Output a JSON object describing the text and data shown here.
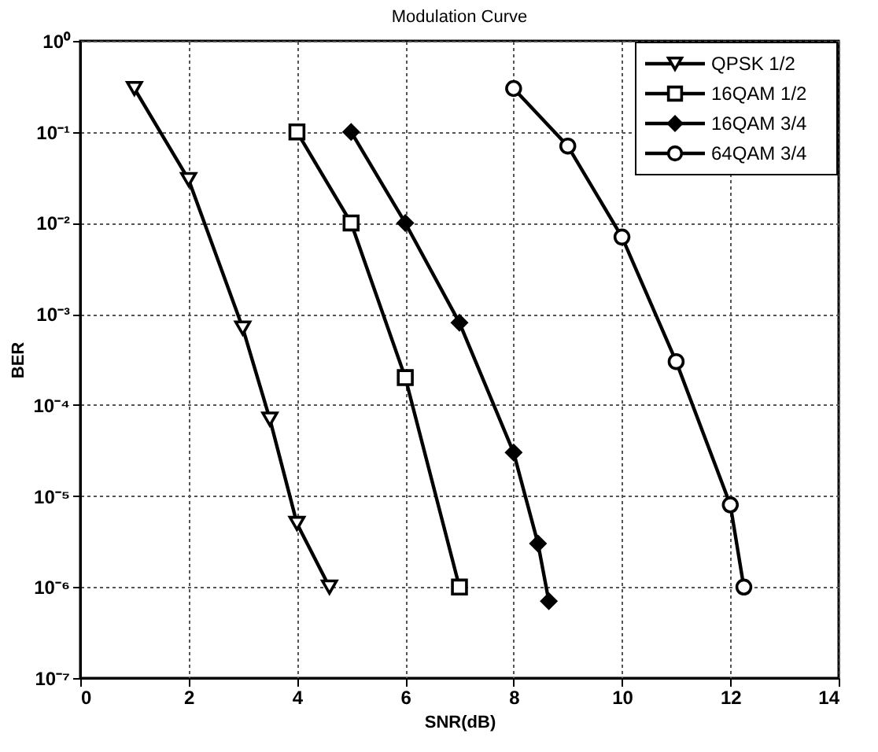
{
  "chart_data": {
    "type": "line",
    "title": "Modulation Curve",
    "xlabel": "SNR(dB)",
    "ylabel": "BER",
    "log": "y",
    "grid": true,
    "legend": "top right",
    "line_style": "solid",
    "xlim": [
      0,
      14
    ],
    "xticks": [
      0,
      2,
      4,
      6,
      8,
      10,
      12,
      14
    ],
    "ylim": [
      1e-07,
      1
    ],
    "yticks": [
      {
        "value": 1e-07,
        "label": "10⁻⁷"
      },
      {
        "value": 1e-06,
        "label": "10⁻⁶"
      },
      {
        "value": 1e-05,
        "label": "10⁻⁵"
      },
      {
        "value": 0.0001,
        "label": "10⁻⁴"
      },
      {
        "value": 0.001,
        "label": "10⁻³"
      },
      {
        "value": 0.01,
        "label": "10⁻²"
      },
      {
        "value": 0.1,
        "label": "10⁻¹"
      },
      {
        "value": 1,
        "label": "10⁰"
      }
    ],
    "series": [
      {
        "name": "QPSK 1/2",
        "color": "#000000",
        "marker": "triangle",
        "x": [
          1,
          2,
          3,
          3.5,
          4,
          4.6
        ],
        "values": [
          0.3,
          0.03,
          0.0007,
          7e-05,
          5e-06,
          1e-06
        ]
      },
      {
        "name": "16QAM 1/2",
        "color": "#000000",
        "marker": "square",
        "x": [
          4,
          5,
          6,
          7
        ],
        "values": [
          0.1,
          0.01,
          0.0002,
          1e-06
        ]
      },
      {
        "name": "16QAM 3/4",
        "color": "#000000",
        "marker": "diamond",
        "x": [
          5,
          6,
          7,
          8,
          8.45,
          8.65
        ],
        "values": [
          0.1,
          0.01,
          0.0008,
          3e-05,
          3e-06,
          7e-07
        ]
      },
      {
        "name": "64QAM 3/4",
        "color": "#000000",
        "marker": "circle",
        "x": [
          8,
          9,
          10,
          11,
          12,
          12.25
        ],
        "values": [
          0.3,
          0.07,
          0.007,
          0.0003,
          8e-06,
          1e-06
        ]
      }
    ]
  }
}
